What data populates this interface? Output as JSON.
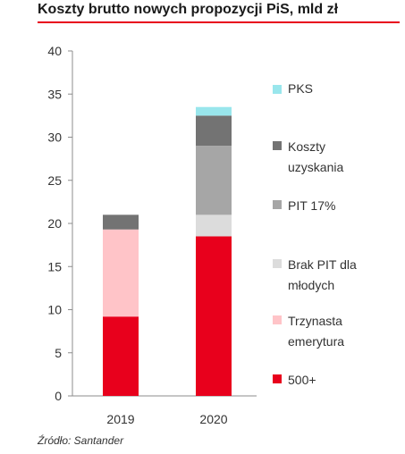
{
  "title": "Koszty brutto nowych propozycji PiS, mld zł",
  "source": "Źródło: Santander",
  "chart_data": {
    "type": "bar",
    "stacked": true,
    "title": "Koszty brutto nowych propozycji PiS, mld zł",
    "categories": [
      "2019",
      "2020"
    ],
    "ylim": [
      0,
      40
    ],
    "yticks": [
      0,
      5,
      10,
      15,
      20,
      25,
      30,
      35,
      40
    ],
    "grid": false,
    "legend_position": "right",
    "series": [
      {
        "name": "500+",
        "color": "#e8001c",
        "values": [
          9.2,
          18.5
        ]
      },
      {
        "name": "Trzynasta emerytura",
        "color": "#ffc4c8",
        "values": [
          10.1,
          0
        ]
      },
      {
        "name": "Brak PIT dla młodych",
        "color": "#dcdcdc",
        "values": [
          0,
          2.5
        ]
      },
      {
        "name": "PIT 17%",
        "color": "#a6a6a6",
        "values": [
          0,
          8.0
        ]
      },
      {
        "name": "Koszty uzyskania",
        "color": "#737373",
        "values": [
          1.7,
          3.5
        ]
      },
      {
        "name": "PKS",
        "color": "#99e6ec",
        "values": [
          0,
          1.0
        ]
      }
    ]
  }
}
